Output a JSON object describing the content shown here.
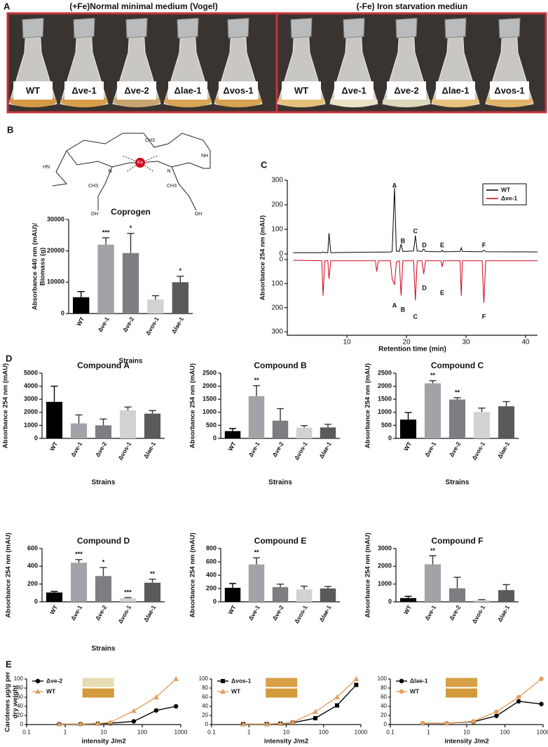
{
  "panel_a": {
    "label": "A",
    "left_title": "(+Fe)Normal minimal medium (Vogel)",
    "right_title": "(-Fe) Iron starvation mediun",
    "left_flasks": [
      "WT",
      "Δve-1",
      "Δve-2",
      "Δlae-1",
      "Δvos-1"
    ],
    "right_flasks": [
      "WT",
      "Δve-1",
      "Δve-2",
      "Δlae-1",
      "Δvos-1"
    ]
  },
  "molecule": {
    "atoms": [
      "Fe",
      "CH3",
      "CH3",
      "CH3",
      "HN",
      "NH",
      "N",
      "N",
      "OH",
      "OH"
    ]
  },
  "chart_data": [
    {
      "type": "bar",
      "panel_label": "B",
      "title": "Coprogen",
      "ylabel": [
        "Absorbance 440 nm (mAU)/",
        "Biomass (g)"
      ],
      "xlabel": "Strains",
      "categories": [
        "WT",
        "Δve-1",
        "Δve-2",
        "Δvos-1",
        "Δlae-1"
      ],
      "values": [
        5200,
        22000,
        19300,
        4500,
        10000
      ],
      "errors": [
        1800,
        2200,
        6300,
        1200,
        1900
      ],
      "significance": [
        null,
        "***",
        "*",
        null,
        "*"
      ],
      "colors": [
        "#000000",
        "#a2a2a8",
        "#7e7e82",
        "#d2d2d2",
        "#5a5a5c"
      ],
      "ylim": [
        0,
        30000
      ],
      "yticks": [
        0,
        10000,
        20000,
        30000
      ]
    },
    {
      "type": "line",
      "panel_label": "C",
      "ylabel": "Absorbance 254 nm (mAU)",
      "xlabel": "Retention time (min)",
      "x": [
        1,
        5.8,
        6,
        6.3,
        6.8,
        7,
        7.3,
        10,
        14.8,
        15,
        15.3,
        17.3,
        17.6,
        18,
        18.3,
        18.8,
        19.1,
        19.4,
        21.2,
        21.5,
        21.8,
        22.6,
        22.9,
        23.2,
        25.8,
        26,
        26.2,
        29,
        29.2,
        29.4,
        32.7,
        33,
        33.3,
        42
      ],
      "series": [
        {
          "name": "WT",
          "color": "#000000",
          "values": [
            5,
            5,
            8,
            5,
            5,
            85,
            5,
            6,
            7,
            8,
            7,
            8,
            10,
            270,
            12,
            10,
            40,
            10,
            12,
            75,
            12,
            10,
            20,
            10,
            9,
            15,
            9,
            10,
            25,
            10,
            9,
            15,
            9,
            8
          ]
        },
        {
          "name": "Δve-1",
          "color": "#d0021b",
          "axis": "y2",
          "values": [
            3,
            5,
            150,
            5,
            5,
            80,
            5,
            5,
            5,
            50,
            5,
            5,
            80,
            105,
            10,
            5,
            150,
            5,
            5,
            170,
            5,
            5,
            60,
            5,
            5,
            30,
            5,
            5,
            150,
            5,
            5,
            180,
            5,
            5
          ]
        }
      ],
      "peak_labels": [
        "A",
        "B",
        "C",
        "D",
        "E",
        "F"
      ],
      "xlim": [
        0,
        42
      ],
      "xticks": [
        10,
        20,
        30,
        40
      ],
      "ylim": [
        0,
        300
      ],
      "yticks": [
        0,
        100,
        200,
        300
      ],
      "y2lim": [
        300,
        0
      ],
      "y2ticks": [
        0,
        100,
        200,
        300
      ],
      "legend": "top-right"
    },
    {
      "type": "bar",
      "panel_label": "D",
      "title": "Compound A",
      "ylabel": "Absorbance 254 nm (mAU)",
      "xlabel": "Strains",
      "categories": [
        "WT",
        "Δve-1",
        "Δve-2",
        "Δvos-1",
        "Δlae-1"
      ],
      "values": [
        2800,
        1150,
        1000,
        2150,
        1900
      ],
      "errors": [
        1200,
        650,
        480,
        250,
        230
      ],
      "significance": [
        null,
        null,
        null,
        null,
        null
      ],
      "colors": [
        "#000000",
        "#a2a2a8",
        "#7e7e82",
        "#d2d2d2",
        "#5a5a5c"
      ],
      "ylim": [
        0,
        5000
      ],
      "yticks": [
        0,
        1000,
        2000,
        3000,
        4000,
        5000
      ]
    },
    {
      "type": "bar",
      "title": "Compound B",
      "ylabel": "Absorbance 254 nm (mAU)",
      "xlabel": "Strains",
      "categories": [
        "WT",
        "Δve-1",
        "Δve-2",
        "Δvos-1",
        "Δlae-1"
      ],
      "values": [
        280,
        1620,
        680,
        410,
        420
      ],
      "errors": [
        100,
        400,
        460,
        80,
        120
      ],
      "significance": [
        null,
        "**",
        null,
        null,
        null
      ],
      "colors": [
        "#000000",
        "#a2a2a8",
        "#7e7e82",
        "#d2d2d2",
        "#5a5a5c"
      ],
      "ylim": [
        0,
        2500
      ],
      "yticks": [
        0,
        500,
        1000,
        1500,
        2000,
        2500
      ]
    },
    {
      "type": "bar",
      "title": "Compound C",
      "ylabel": "Absorbance 254 nm (mAU)",
      "xlabel": "Strains",
      "categories": [
        "WT",
        "Δve-1",
        "Δve-2",
        "Δvos-1",
        "Δlae-1"
      ],
      "values": [
        720,
        2110,
        1490,
        1010,
        1230
      ],
      "errors": [
        270,
        100,
        70,
        150,
        180
      ],
      "significance": [
        null,
        "**",
        "**",
        null,
        null
      ],
      "colors": [
        "#000000",
        "#a2a2a8",
        "#7e7e82",
        "#d2d2d2",
        "#5a5a5c"
      ],
      "ylim": [
        0,
        2500
      ],
      "yticks": [
        0,
        500,
        1000,
        1500,
        2000,
        2500
      ]
    },
    {
      "type": "bar",
      "title": "Compound D",
      "ylabel": "Absorbance 254 nm (mAU)",
      "xlabel": "Strains",
      "categories": [
        "WT",
        "Δve-1",
        "Δve-2",
        "Δvos-1",
        "Δlae-1"
      ],
      "values": [
        105,
        440,
        290,
        40,
        215
      ],
      "errors": [
        12,
        35,
        95,
        8,
        40
      ],
      "significance": [
        null,
        "***",
        "*",
        "***",
        "**"
      ],
      "colors": [
        "#000000",
        "#a2a2a8",
        "#7e7e82",
        "#d2d2d2",
        "#5a5a5c"
      ],
      "ylim": [
        0,
        600
      ],
      "yticks": [
        0,
        200,
        400,
        600
      ]
    },
    {
      "type": "bar",
      "title": "Compound E",
      "ylabel": "Absorbance 254 nm (mAU)",
      "categories": [
        "WT",
        "Δve-1",
        "Δve-2",
        "Δvos-1",
        "Δlae-1"
      ],
      "values": [
        210,
        560,
        220,
        185,
        200
      ],
      "errors": [
        65,
        100,
        45,
        50,
        30
      ],
      "significance": [
        null,
        "**",
        null,
        null,
        null
      ],
      "colors": [
        "#000000",
        "#a2a2a8",
        "#7e7e82",
        "#d2d2d2",
        "#5a5a5c"
      ],
      "ylim": [
        0,
        800
      ],
      "yticks": [
        0,
        200,
        400,
        600,
        800
      ]
    },
    {
      "type": "bar",
      "title": "Compound F",
      "ylabel": "Absorbance 254 nm (mAU)",
      "categories": [
        "WT",
        "Δve-1",
        "Δve-2",
        "Δvos-1",
        "Δlae-1"
      ],
      "values": [
        210,
        2110,
        760,
        95,
        660
      ],
      "errors": [
        100,
        480,
        620,
        30,
        310
      ],
      "significance": [
        null,
        "**",
        null,
        null,
        null
      ],
      "colors": [
        "#000000",
        "#a2a2a8",
        "#7e7e82",
        "#d2d2d2",
        "#5a5a5c"
      ],
      "ylim": [
        0,
        3000
      ],
      "yticks": [
        0,
        1000,
        2000,
        3000
      ]
    },
    {
      "type": "line",
      "panel_label": "E",
      "xscale": "log",
      "ylabel": [
        "Carotenes µg/g per",
        "dry weight"
      ],
      "xlabel": "intensity J/m2",
      "x": [
        0.7,
        2.5,
        7,
        15,
        60,
        230,
        750
      ],
      "series": [
        {
          "name": "Δve-2",
          "color": "#000000",
          "marker": "circle",
          "values": [
            1,
            1,
            2,
            3,
            7,
            31,
            40
          ]
        },
        {
          "name": "WT",
          "color": "#e0a060",
          "marker": "triangle",
          "values": [
            1,
            1,
            2,
            5,
            30,
            60,
            100
          ]
        }
      ],
      "xlim": [
        0.1,
        1000
      ],
      "xticks": [
        0.1,
        1,
        10,
        100,
        1000
      ],
      "ylim": [
        0,
        100
      ],
      "yticks": [
        0,
        20,
        40,
        60,
        80,
        100
      ],
      "legend": "top-left"
    },
    {
      "type": "line",
      "xscale": "log",
      "xlabel": "intensity J/m2",
      "x": [
        0.7,
        3,
        7,
        15,
        60,
        230,
        750
      ],
      "series": [
        {
          "name": "Δvos-1",
          "color": "#000000",
          "marker": "square",
          "values": [
            1,
            1,
            2,
            4,
            14,
            42,
            87
          ]
        },
        {
          "name": "WT",
          "color": "#e0a060",
          "marker": "triangle",
          "values": [
            1,
            1,
            2,
            5,
            28,
            60,
            100
          ]
        }
      ],
      "xlim": [
        0.1,
        1000
      ],
      "xticks": [
        0.1,
        1,
        10,
        100,
        1000
      ],
      "ylim": [
        0,
        100
      ],
      "yticks": [
        0,
        20,
        40,
        60,
        80,
        100
      ],
      "legend": "top-left"
    },
    {
      "type": "line",
      "xscale": "log",
      "xlabel": "intensity J/m2",
      "x": [
        0.7,
        3,
        15,
        60,
        230,
        900
      ],
      "series": [
        {
          "name": "Δlae-1",
          "color": "#000000",
          "marker": "circle",
          "values": [
            3,
            3,
            6,
            19,
            51,
            45
          ]
        },
        {
          "name": "WT",
          "color": "#e0a060",
          "marker": "circle",
          "values": [
            3,
            3,
            7,
            28,
            60,
            100
          ]
        }
      ],
      "xlim": [
        0.1,
        1000
      ],
      "xticks": [
        0.1,
        1,
        10,
        100,
        1000
      ],
      "ylim": [
        0,
        100
      ],
      "yticks": [
        0,
        20,
        40,
        60,
        80,
        100
      ],
      "legend": "top-left"
    }
  ]
}
